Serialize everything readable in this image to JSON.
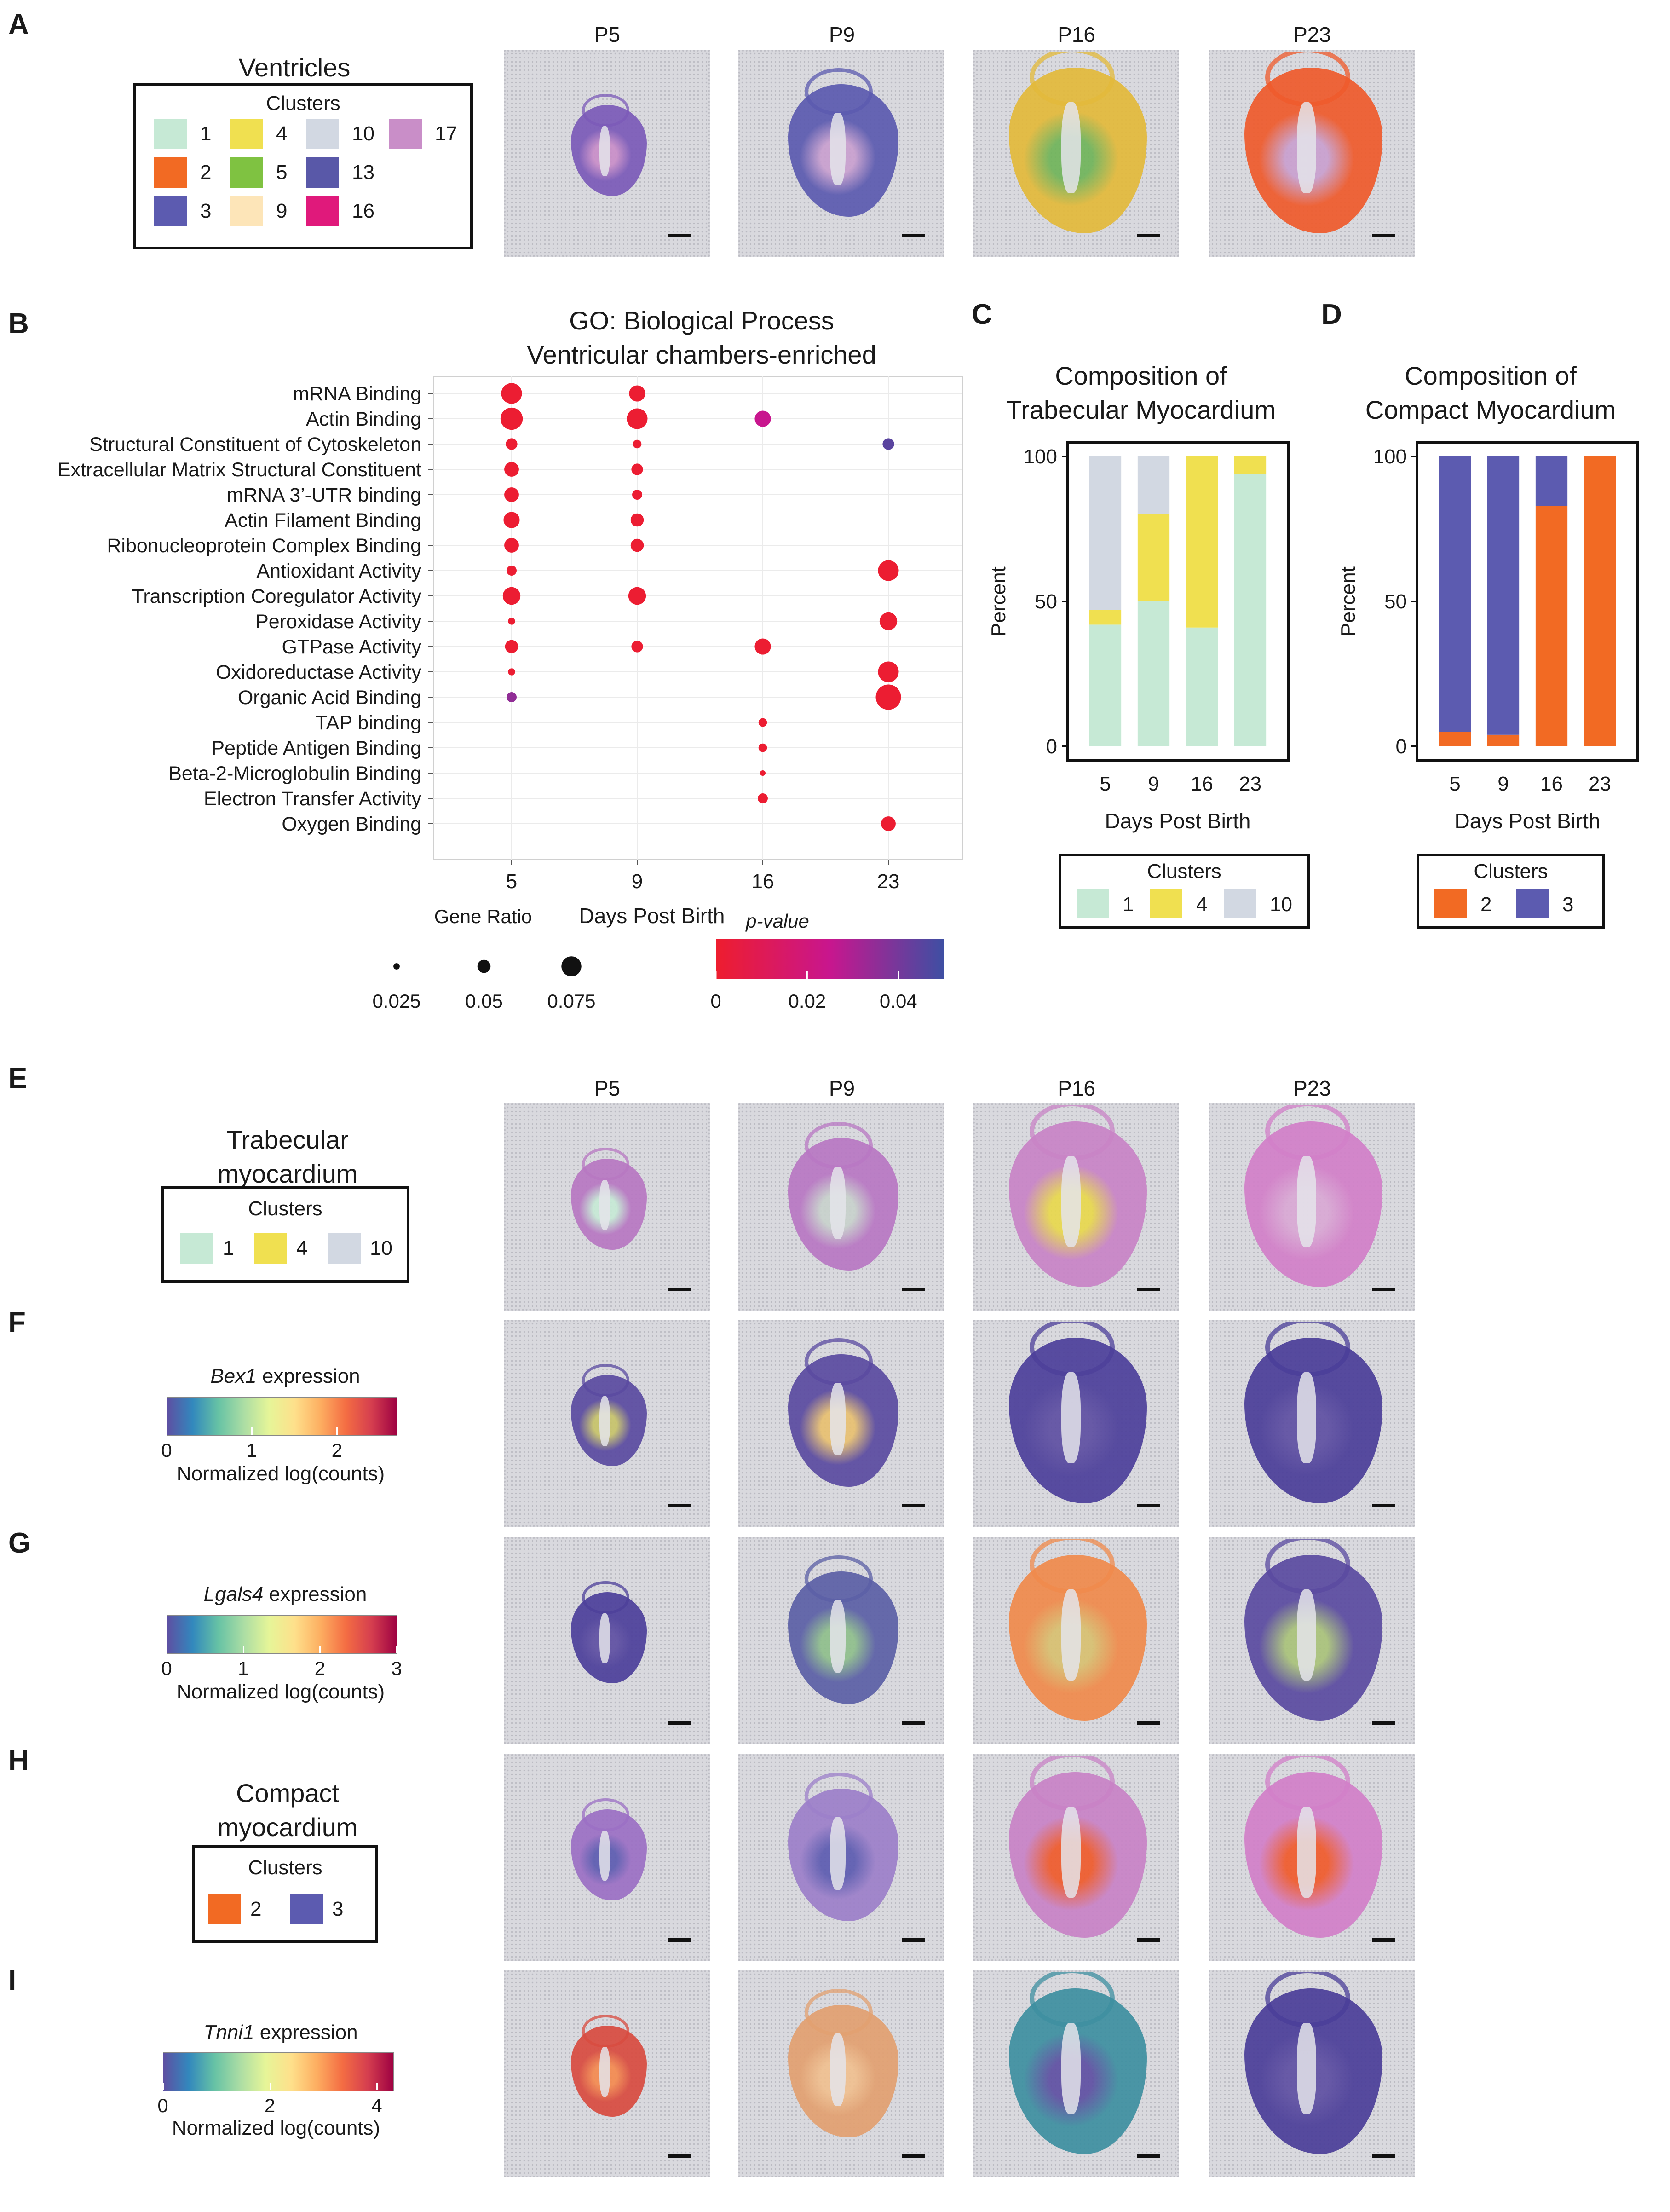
{
  "panel_labels": [
    "A",
    "B",
    "C",
    "D",
    "E",
    "F",
    "G",
    "H",
    "I"
  ],
  "timepoints": [
    "P5",
    "P9",
    "P16",
    "P23"
  ],
  "panelA": {
    "title": "Ventricles",
    "legend_title": "Clusters",
    "clusters": [
      {
        "label": "1",
        "color": "#c6e9d5"
      },
      {
        "label": "2",
        "color": "#f26a23"
      },
      {
        "label": "3",
        "color": "#5c5bb0"
      },
      {
        "label": "4",
        "color": "#f0e050"
      },
      {
        "label": "5",
        "color": "#7fc241"
      },
      {
        "label": "9",
        "color": "#fde5b8"
      },
      {
        "label": "10",
        "color": "#d2d8e2"
      },
      {
        "label": "13",
        "color": "#5958a8"
      },
      {
        "label": "16",
        "color": "#e0197b"
      },
      {
        "label": "17",
        "color": "#c98ec8"
      }
    ]
  },
  "panelB": {
    "chart_data": {
      "type": "scatter",
      "title": "GO: Biological Process",
      "subtitle": "Ventricular chambers-enriched",
      "xlabel": "Days Post Birth",
      "x_categories": [
        "5",
        "9",
        "16",
        "23"
      ],
      "y_categories": [
        "mRNA Binding",
        "Actin Binding",
        "Structural Constituent of Cytoskeleton",
        "Extracellular Matrix Structural Constituent",
        "mRNA 3’-UTR binding",
        "Actin Filament Binding",
        "Ribonucleoprotein Complex Binding",
        "Antioxidant Activity",
        "Transcription Coregulator Activity",
        "Peroxidase Activity",
        "GTPase Activity",
        "Oxidoreductase Activity",
        "Organic Acid Binding",
        "TAP binding",
        "Peptide Antigen Binding",
        "Beta-2-Microglobulin Binding",
        "Electron Transfer Activity",
        "Oxygen Binding"
      ],
      "points": [
        {
          "x": "5",
          "y": "mRNA Binding",
          "gene_ratio": 0.07,
          "p": 0.001
        },
        {
          "x": "9",
          "y": "mRNA Binding",
          "gene_ratio": 0.055,
          "p": 0.001
        },
        {
          "x": "5",
          "y": "Actin Binding",
          "gene_ratio": 0.075,
          "p": 0.001
        },
        {
          "x": "9",
          "y": "Actin Binding",
          "gene_ratio": 0.07,
          "p": 0.001
        },
        {
          "x": "16",
          "y": "Actin Binding",
          "gene_ratio": 0.055,
          "p": 0.025
        },
        {
          "x": "5",
          "y": "Structural Constituent of Cytoskeleton",
          "gene_ratio": 0.04,
          "p": 0.001
        },
        {
          "x": "9",
          "y": "Structural Constituent of Cytoskeleton",
          "gene_ratio": 0.03,
          "p": 0.001
        },
        {
          "x": "23",
          "y": "Structural Constituent of Cytoskeleton",
          "gene_ratio": 0.04,
          "p": 0.045
        },
        {
          "x": "5",
          "y": "Extracellular Matrix Structural Constituent",
          "gene_ratio": 0.05,
          "p": 0.001
        },
        {
          "x": "9",
          "y": "Extracellular Matrix Structural Constituent",
          "gene_ratio": 0.04,
          "p": 0.001
        },
        {
          "x": "5",
          "y": "mRNA 3’-UTR binding",
          "gene_ratio": 0.05,
          "p": 0.001
        },
        {
          "x": "9",
          "y": "mRNA 3’-UTR binding",
          "gene_ratio": 0.035,
          "p": 0.001
        },
        {
          "x": "5",
          "y": "Actin Filament Binding",
          "gene_ratio": 0.055,
          "p": 0.001
        },
        {
          "x": "9",
          "y": "Actin Filament Binding",
          "gene_ratio": 0.045,
          "p": 0.001
        },
        {
          "x": "5",
          "y": "Ribonucleoprotein Complex Binding",
          "gene_ratio": 0.05,
          "p": 0.001
        },
        {
          "x": "9",
          "y": "Ribonucleoprotein Complex Binding",
          "gene_ratio": 0.045,
          "p": 0.001
        },
        {
          "x": "5",
          "y": "Antioxidant Activity",
          "gene_ratio": 0.035,
          "p": 0.001
        },
        {
          "x": "23",
          "y": "Antioxidant Activity",
          "gene_ratio": 0.07,
          "p": 0.001
        },
        {
          "x": "5",
          "y": "Transcription Coregulator Activity",
          "gene_ratio": 0.06,
          "p": 0.001
        },
        {
          "x": "9",
          "y": "Transcription Coregulator Activity",
          "gene_ratio": 0.06,
          "p": 0.001
        },
        {
          "x": "5",
          "y": "Peroxidase Activity",
          "gene_ratio": 0.025,
          "p": 0.001
        },
        {
          "x": "23",
          "y": "Peroxidase Activity",
          "gene_ratio": 0.06,
          "p": 0.001
        },
        {
          "x": "5",
          "y": "GTPase Activity",
          "gene_ratio": 0.045,
          "p": 0.001
        },
        {
          "x": "9",
          "y": "GTPase Activity",
          "gene_ratio": 0.04,
          "p": 0.001
        },
        {
          "x": "16",
          "y": "GTPase Activity",
          "gene_ratio": 0.055,
          "p": 0.001
        },
        {
          "x": "5",
          "y": "Oxidoreductase Activity",
          "gene_ratio": 0.025,
          "p": 0.001
        },
        {
          "x": "23",
          "y": "Oxidoreductase Activity",
          "gene_ratio": 0.07,
          "p": 0.001
        },
        {
          "x": "5",
          "y": "Organic Acid Binding",
          "gene_ratio": 0.035,
          "p": 0.035
        },
        {
          "x": "23",
          "y": "Organic Acid Binding",
          "gene_ratio": 0.085,
          "p": 0.001
        },
        {
          "x": "16",
          "y": "TAP binding",
          "gene_ratio": 0.03,
          "p": 0.001
        },
        {
          "x": "16",
          "y": "Peptide Antigen Binding",
          "gene_ratio": 0.03,
          "p": 0.001
        },
        {
          "x": "16",
          "y": "Beta-2-Microglobulin Binding",
          "gene_ratio": 0.02,
          "p": 0.001
        },
        {
          "x": "16",
          "y": "Electron Transfer Activity",
          "gene_ratio": 0.035,
          "p": 0.001
        },
        {
          "x": "23",
          "y": "Oxygen Binding",
          "gene_ratio": 0.05,
          "p": 0.001
        }
      ],
      "size_legend": {
        "title": "Gene Ratio",
        "values": [
          0.025,
          0.05,
          0.075
        ],
        "labels": [
          "0.025",
          "0.05",
          "0.075"
        ]
      },
      "color_legend": {
        "title": "p-value",
        "ticks": [
          "0",
          "0.02",
          "0.04"
        ],
        "range": [
          0,
          0.05
        ],
        "colors": [
          "#ee1d2e",
          "#c8168e",
          "#3e4fa3"
        ]
      }
    }
  },
  "panelC": {
    "chart_data": {
      "type": "bar",
      "stacked": true,
      "title_line1": "Composition of",
      "title_line2": "Trabecular Myocardium",
      "xlabel": "Days Post Birth",
      "ylabel": "Percent",
      "categories": [
        "5",
        "9",
        "16",
        "23"
      ],
      "ylim": [
        0,
        100
      ],
      "yticks": [
        "0",
        "50",
        "100"
      ],
      "series": [
        {
          "name": "1",
          "color": "#c6e9d5",
          "values": [
            42,
            50,
            41,
            94
          ]
        },
        {
          "name": "4",
          "color": "#f0e050",
          "values": [
            5,
            30,
            59,
            6
          ]
        },
        {
          "name": "10",
          "color": "#d2d8e2",
          "values": [
            53,
            20,
            0,
            0
          ]
        }
      ],
      "legend_title": "Clusters"
    }
  },
  "panelD": {
    "chart_data": {
      "type": "bar",
      "stacked": true,
      "title_line1": "Composition of",
      "title_line2": "Compact Myocardium",
      "xlabel": "Days Post Birth",
      "ylabel": "Percent",
      "categories": [
        "5",
        "9",
        "16",
        "23"
      ],
      "ylim": [
        0,
        100
      ],
      "yticks": [
        "0",
        "50",
        "100"
      ],
      "series": [
        {
          "name": "2",
          "color": "#f26a23",
          "values": [
            5,
            4,
            83,
            100
          ]
        },
        {
          "name": "3",
          "color": "#5c5bb0",
          "values": [
            95,
            96,
            17,
            0
          ]
        }
      ],
      "legend_title": "Clusters"
    }
  },
  "panelE": {
    "title_line1": "Trabecular",
    "title_line2": "myocardium",
    "legend_title": "Clusters",
    "clusters": [
      {
        "label": "1",
        "color": "#c6e9d5"
      },
      {
        "label": "4",
        "color": "#f0e050"
      },
      {
        "label": "10",
        "color": "#d2d8e2"
      }
    ]
  },
  "panelF": {
    "gene": "Bex1",
    "suffix": " expression",
    "ticks": [
      "0",
      "1",
      "2"
    ],
    "max": 2.7,
    "sub": "Normalized log(counts)"
  },
  "panelG": {
    "gene": "Lgals4",
    "suffix": " expression",
    "ticks": [
      "0",
      "1",
      "2",
      "3"
    ],
    "max": 3,
    "sub": "Normalized log(counts)"
  },
  "panelH": {
    "title_line1": "Compact",
    "title_line2": "myocardium",
    "legend_title": "Clusters",
    "clusters": [
      {
        "label": "2",
        "color": "#f26a23"
      },
      {
        "label": "3",
        "color": "#5c5bb0"
      }
    ]
  },
  "panelI": {
    "gene": "Tnni1",
    "suffix": " expression",
    "ticks": [
      "0",
      "2",
      "4"
    ],
    "max": 4.3,
    "sub": "Normalized log(counts)"
  },
  "spectral_colors": [
    "#5e4fa2",
    "#3288bd",
    "#66c2a5",
    "#abdda4",
    "#e6f598",
    "#fee08b",
    "#fdae61",
    "#f46d43",
    "#d53e4f",
    "#9e0142"
  ]
}
